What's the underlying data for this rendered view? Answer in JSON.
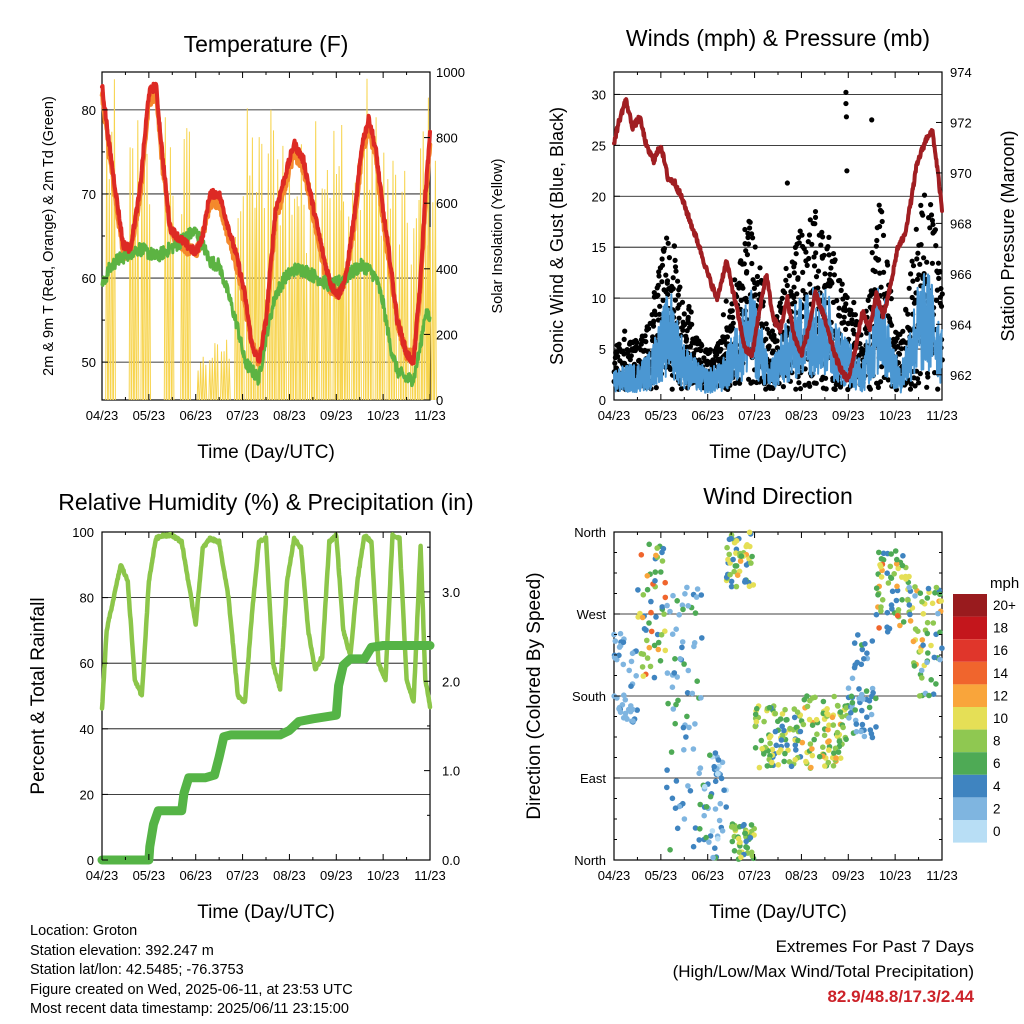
{
  "colors": {
    "t2m": "#dd2a24",
    "t9m": "#f4892c",
    "td": "#5cb342",
    "solar": "#f7d44e",
    "gust": "#000000",
    "wind": "#4b97d2",
    "pressure": "#a01e22",
    "rh": "#8cc64a",
    "precip": "#55b446",
    "extremes": "#cc2229"
  },
  "info": {
    "location": "Location: Groton",
    "elevation": "Station elevation: 392.247 m",
    "latlon": "Station lat/lon: 42.5485; -76.3753",
    "created": "Figure created on Wed, 2025-06-11, at 23:53 UTC",
    "latest": "Most recent data timestamp: 2025/06/11 23:15:00"
  },
  "extremes": {
    "line1": "Extremes For Past 7 Days",
    "line2": "(High/Low/Max Wind/Total Precipitation)",
    "values": "82.9/48.8/17.3/2.44"
  },
  "chart_data": [
    {
      "id": "temperature",
      "type": "line",
      "title": "Temperature (F)",
      "xlabel": "Time (Day/UTC)",
      "ylabel": "2m & 9m T (Red, Orange) & 2m Td (Green)",
      "y2label": "Solar Insolation (Yellow)",
      "xticks": [
        "04/23",
        "05/23",
        "06/23",
        "07/23",
        "08/23",
        "09/23",
        "10/23",
        "11/23"
      ],
      "xlim": [
        0,
        7
      ],
      "ylim": [
        45.5,
        84.5
      ],
      "y2lim": [
        0,
        1000
      ],
      "yticks": [
        50,
        60,
        70,
        80
      ],
      "y2ticks": [
        0,
        200,
        400,
        600,
        800,
        1000
      ],
      "x": [
        0,
        0.15,
        0.3,
        0.45,
        0.6,
        0.8,
        1.0,
        1.15,
        1.3,
        1.45,
        1.6,
        1.8,
        2.0,
        2.15,
        2.3,
        2.5,
        2.7,
        2.9,
        3.05,
        3.2,
        3.35,
        3.5,
        3.7,
        3.9,
        4.1,
        4.3,
        4.45,
        4.6,
        4.75,
        4.9,
        5.05,
        5.2,
        5.4,
        5.55,
        5.7,
        5.85,
        6.0,
        6.15,
        6.3,
        6.5,
        6.65,
        6.8,
        6.9,
        7.0
      ],
      "series": [
        {
          "name": "Temperature 2m",
          "values": [
            83,
            76,
            70,
            64,
            63.5,
            70,
            82,
            83,
            74,
            66,
            65,
            64,
            63,
            65,
            70,
            70,
            66,
            62,
            58,
            52,
            50,
            55,
            68,
            72,
            76,
            74,
            70,
            66,
            62,
            59,
            58,
            60,
            68,
            76,
            79,
            75,
            68,
            62,
            55,
            51,
            50,
            60,
            70,
            77
          ]
        },
        {
          "name": "Temperature 9m",
          "values": [
            82,
            75,
            69,
            63,
            63,
            69,
            81,
            82,
            73,
            66,
            64.5,
            63.5,
            63,
            65,
            69,
            69,
            65,
            61,
            57,
            52,
            50,
            54,
            67,
            71,
            75,
            73,
            69,
            65,
            61,
            58.5,
            58,
            60,
            67,
            75,
            78,
            74,
            67,
            61,
            55,
            51,
            51,
            59,
            69,
            76
          ]
        },
        {
          "name": "Dew Point 2m",
          "values": [
            59,
            61,
            62,
            62.5,
            63,
            63.5,
            63,
            62.5,
            63,
            63.5,
            64,
            65,
            65.5,
            64,
            62,
            61.5,
            58,
            54,
            50,
            49,
            48,
            53,
            58,
            60,
            61,
            61,
            60.5,
            60,
            59.5,
            59,
            59.5,
            60,
            61,
            61.5,
            61,
            60,
            57,
            52,
            49,
            48,
            48,
            52,
            56,
            55
          ]
        }
      ],
      "solar_days": [
        0.1,
        0.6,
        0.85,
        1.35,
        1.7,
        2.05,
        2.3,
        2.55,
        2.85,
        3.1,
        3.3,
        3.55,
        3.75,
        4.0,
        4.2,
        4.45,
        4.7,
        4.95,
        5.1,
        5.35,
        5.6,
        5.85,
        6.1,
        6.35,
        6.6,
        6.8,
        6.95
      ],
      "solar_peaks": [
        980,
        900,
        850,
        950,
        880,
        150,
        180,
        200,
        800,
        900,
        850,
        950,
        900,
        850,
        800,
        1000,
        950,
        900,
        700,
        850,
        1000,
        900,
        800,
        700,
        650,
        950,
        800
      ]
    },
    {
      "id": "winds",
      "type": "scatter",
      "title": "Winds (mph) & Pressure (mb)",
      "xlabel": "Time (Day/UTC)",
      "ylabel": "Sonic Wind & Gust (Blue, Black)",
      "y2label": "Station Pressure (Maroon)",
      "xticks": [
        "04/23",
        "05/23",
        "06/23",
        "07/23",
        "08/23",
        "09/23",
        "10/23",
        "11/23"
      ],
      "xlim": [
        0,
        7
      ],
      "ylim": [
        0,
        32.2
      ],
      "y2lim": [
        961.0,
        974.0
      ],
      "yticks": [
        0,
        5,
        10,
        15,
        20,
        25,
        30
      ],
      "y2ticks": [
        962,
        964,
        966,
        968,
        970,
        972,
        974
      ],
      "gust_envelope": {
        "x": [
          0,
          0.5,
          0.8,
          1.0,
          1.2,
          1.5,
          1.8,
          2.0,
          2.3,
          2.6,
          2.9,
          3.1,
          3.3,
          3.5,
          3.7,
          4.0,
          4.3,
          4.6,
          4.8,
          5.0,
          5.3,
          5.5,
          5.7,
          5.9,
          6.1,
          6.3,
          6.5,
          6.7,
          6.9,
          7.0
        ],
        "y": [
          5,
          6,
          8,
          14,
          18,
          9,
          6,
          5,
          6,
          12,
          18,
          14,
          6,
          9,
          13,
          17,
          19,
          17,
          12,
          10,
          6,
          14,
          20,
          11,
          5,
          12,
          19,
          21,
          16,
          11
        ]
      },
      "extra_gusts": [
        {
          "x": 4.95,
          "y": 30.2
        },
        {
          "x": 4.95,
          "y": 29.1
        },
        {
          "x": 4.96,
          "y": 27.8
        },
        {
          "x": 4.97,
          "y": 22.5
        },
        {
          "x": 5.5,
          "y": 27.5
        },
        {
          "x": 3.7,
          "y": 21.3
        },
        {
          "x": 4.3,
          "y": 18.5
        }
      ],
      "pressure": {
        "x": [
          0,
          0.1,
          0.25,
          0.4,
          0.55,
          0.7,
          0.85,
          1.0,
          1.15,
          1.3,
          1.45,
          1.6,
          1.8,
          2.0,
          2.2,
          2.4,
          2.6,
          2.8,
          2.95,
          3.1,
          3.25,
          3.4,
          3.55,
          3.7,
          3.85,
          4.0,
          4.15,
          4.3,
          4.45,
          4.6,
          4.75,
          4.9,
          5.0,
          5.15,
          5.3,
          5.45,
          5.6,
          5.75,
          5.9,
          6.05,
          6.2,
          6.35,
          6.45,
          6.55,
          6.7,
          6.8,
          6.9,
          7.0
        ],
        "y": [
          971.2,
          972.0,
          972.9,
          971.8,
          972.2,
          971.0,
          970.5,
          971.1,
          969.8,
          969.6,
          969.0,
          968.2,
          967.2,
          966.0,
          965.0,
          966.5,
          964.8,
          963.0,
          962.8,
          964.5,
          966.0,
          964.2,
          963.8,
          965.0,
          963.5,
          962.8,
          963.8,
          965.2,
          964.5,
          963.5,
          962.6,
          962.0,
          961.8,
          963.0,
          964.5,
          963.8,
          965.2,
          964.3,
          965.5,
          967.0,
          967.5,
          969.0,
          970.2,
          970.8,
          971.5,
          971.6,
          970.2,
          968.5
        ]
      }
    },
    {
      "id": "humidity",
      "type": "line",
      "title": "Relative Humidity (%) & Precipitation (in)",
      "xlabel": "Time (Day/UTC)",
      "ylabel": "Percent & Total Rainfall",
      "xticks": [
        "04/23",
        "05/23",
        "06/23",
        "07/23",
        "08/23",
        "09/23",
        "10/23",
        "11/23"
      ],
      "xlim": [
        0,
        7
      ],
      "ylim": [
        0,
        100
      ],
      "y2lim": [
        0,
        3.67
      ],
      "yticks": [
        0,
        20,
        40,
        60,
        80,
        100
      ],
      "y2ticks": [
        "0.0",
        "1.0",
        "2.0",
        "3.0"
      ],
      "series": [
        {
          "name": "Relative Humidity",
          "x": [
            0,
            0.1,
            0.25,
            0.4,
            0.55,
            0.7,
            0.85,
            1.0,
            1.15,
            1.3,
            1.5,
            1.7,
            1.9,
            2.0,
            2.15,
            2.3,
            2.5,
            2.7,
            2.9,
            3.05,
            3.2,
            3.35,
            3.5,
            3.65,
            3.8,
            3.95,
            4.1,
            4.25,
            4.4,
            4.55,
            4.7,
            4.85,
            5.0,
            5.15,
            5.3,
            5.45,
            5.6,
            5.75,
            5.9,
            6.05,
            6.2,
            6.35,
            6.5,
            6.65,
            6.8,
            6.9,
            7.0
          ],
          "y": [
            46,
            70,
            80,
            90,
            85,
            55,
            50,
            85,
            98,
            99,
            99,
            97,
            80,
            72,
            95,
            98,
            97,
            80,
            50,
            48,
            75,
            97,
            98,
            60,
            52,
            85,
            98,
            95,
            70,
            58,
            62,
            97,
            99,
            70,
            62,
            85,
            99,
            97,
            60,
            55,
            99,
            98,
            55,
            48,
            96,
            55,
            47
          ]
        },
        {
          "name": "Total Precipitation",
          "x": [
            0,
            0.5,
            1.0,
            1.02,
            1.1,
            1.2,
            1.4,
            1.7,
            1.75,
            1.85,
            2.2,
            2.4,
            2.5,
            2.6,
            2.75,
            3.0,
            3.5,
            3.8,
            4.0,
            4.2,
            4.5,
            5.0,
            5.05,
            5.15,
            5.3,
            5.6,
            5.75,
            6.0,
            6.5,
            7.0
          ],
          "y": [
            0,
            0,
            0,
            0.15,
            0.4,
            0.55,
            0.55,
            0.55,
            0.75,
            0.92,
            0.92,
            0.95,
            1.15,
            1.38,
            1.4,
            1.4,
            1.4,
            1.4,
            1.45,
            1.55,
            1.58,
            1.62,
            1.95,
            2.18,
            2.25,
            2.25,
            2.38,
            2.4,
            2.4,
            2.4
          ]
        }
      ]
    },
    {
      "id": "direction",
      "type": "scatter",
      "title": "Wind Direction",
      "xlabel": "Time (Day/UTC)",
      "ylabel": "Direction (Colored By Speed)",
      "xticks": [
        "04/23",
        "05/23",
        "06/23",
        "07/23",
        "08/23",
        "09/23",
        "10/23",
        "11/23"
      ],
      "xlim": [
        0,
        7
      ],
      "ylim": [
        0,
        360
      ],
      "yticks": [
        "North",
        "East",
        "South",
        "West",
        "North"
      ],
      "colorbar_title": "mph",
      "colorbar_labels": [
        "20+",
        "18",
        "16",
        "14",
        "12",
        "10",
        "8",
        "6",
        "4",
        "2",
        "0"
      ],
      "colorbar_colors": [
        "#991b1e",
        "#c4161c",
        "#e0362b",
        "#f0652d",
        "#f9a53b",
        "#e5df56",
        "#8fc851",
        "#4eaa55",
        "#3f84c0",
        "#7fb5e0",
        "#b8def5"
      ],
      "clusters": [
        {
          "x": [
            0,
            0.5
          ],
          "d": [
            150,
            250
          ],
          "s": [
            1,
            4
          ]
        },
        {
          "x": [
            0.5,
            1.1
          ],
          "d": [
            200,
            350
          ],
          "s": [
            3,
            14
          ]
        },
        {
          "x": [
            1.1,
            1.9
          ],
          "d": [
            10,
            300
          ],
          "s": [
            1,
            6
          ]
        },
        {
          "x": [
            1.9,
            2.4
          ],
          "d": [
            0,
            120
          ],
          "s": [
            0,
            6
          ]
        },
        {
          "x": [
            2.4,
            3.0
          ],
          "d": [
            300,
            360
          ],
          "s": [
            3,
            12
          ]
        },
        {
          "x": [
            2.5,
            3.0
          ],
          "d": [
            0,
            40
          ],
          "s": [
            4,
            10
          ]
        },
        {
          "x": [
            3.0,
            4.0
          ],
          "d": [
            100,
            170
          ],
          "s": [
            4,
            11
          ]
        },
        {
          "x": [
            4.0,
            5.0
          ],
          "d": [
            100,
            180
          ],
          "s": [
            5,
            12
          ]
        },
        {
          "x": [
            5.0,
            5.6
          ],
          "d": [
            130,
            250
          ],
          "s": [
            2,
            6
          ]
        },
        {
          "x": [
            5.6,
            6.3
          ],
          "d": [
            250,
            340
          ],
          "s": [
            3,
            14
          ]
        },
        {
          "x": [
            6.3,
            7.0
          ],
          "d": [
            180,
            300
          ],
          "s": [
            2,
            12
          ]
        }
      ]
    }
  ]
}
